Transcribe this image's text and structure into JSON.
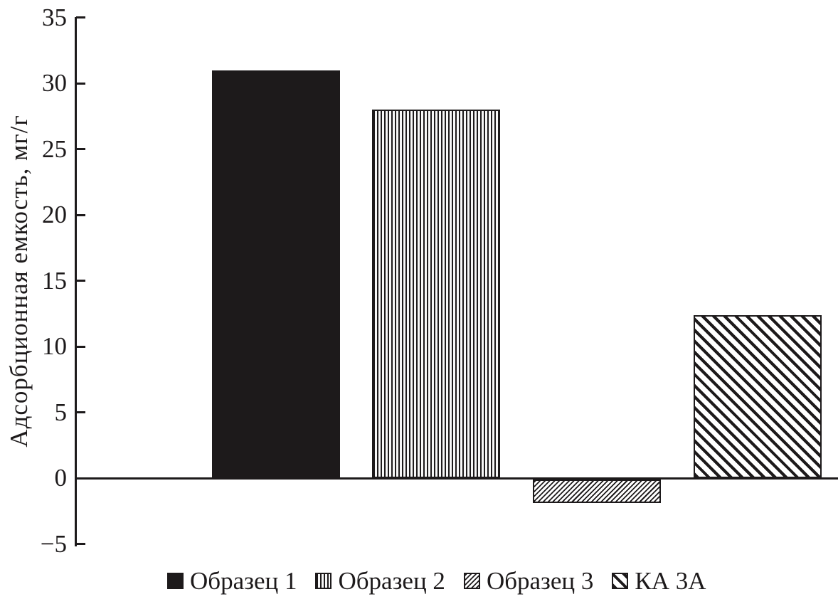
{
  "chart_data": {
    "type": "bar",
    "title": "",
    "ylabel": "Адсорбционная емкость, мг/г",
    "xlabel": "",
    "ylim": [
      -5,
      35
    ],
    "ytick_values": [
      35,
      30,
      25,
      20,
      15,
      10,
      5,
      0,
      -5
    ],
    "ytick_labels": [
      "35",
      "30",
      "25",
      "20",
      "15",
      "10",
      "5",
      "0",
      "−5"
    ],
    "grid": false,
    "legend_position": "bottom",
    "background": "#ffffff",
    "ink_color": "#1d1a1b",
    "categories": [
      "Образец 1",
      "Образец 2",
      "Образец 3",
      "КА 3А"
    ],
    "values": [
      31,
      28,
      -1.8,
      12.4
    ],
    "series": [
      {
        "name": "Образец 1",
        "value": 31,
        "pattern": "solid"
      },
      {
        "name": "Образец 2",
        "value": 28,
        "pattern": "vertical-stripes"
      },
      {
        "name": "Образец 3",
        "value": -1.8,
        "pattern": "diagonal-hatch-fine"
      },
      {
        "name": "КА 3А",
        "value": 12.4,
        "pattern": "diagonal-stripes-coarse"
      }
    ]
  }
}
